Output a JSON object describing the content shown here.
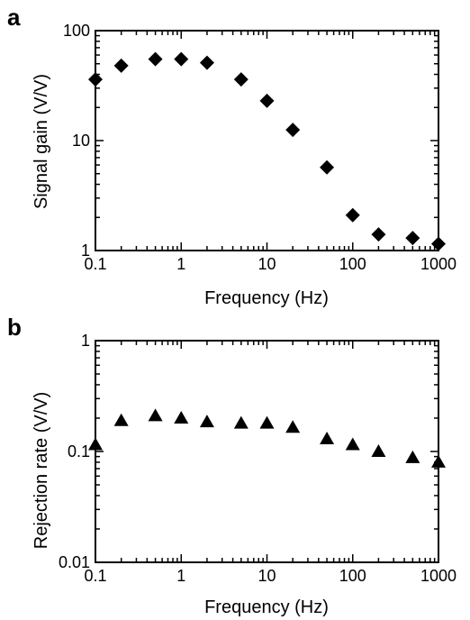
{
  "chart_data": [
    {
      "panel": "a",
      "type": "scatter",
      "marker": "diamond",
      "xlabel": "Frequency (Hz)",
      "ylabel": "Signal gain (V/V)",
      "xscale": "log",
      "yscale": "log",
      "xlim": [
        0.1,
        1000
      ],
      "ylim": [
        1,
        100
      ],
      "xticks": [
        0.1,
        1,
        10,
        100,
        1000
      ],
      "xtick_labels": [
        "0.1",
        "1",
        "10",
        "100",
        "1000"
      ],
      "yticks": [
        1,
        10,
        100
      ],
      "ytick_labels": [
        "1",
        "10",
        "100"
      ],
      "grid": false,
      "series": [
        {
          "x": [
            0.1,
            0.2,
            0.5,
            1,
            2,
            5,
            10,
            20,
            50,
            100,
            200,
            500,
            1000
          ],
          "y": [
            36,
            48,
            55,
            55,
            51,
            36,
            23,
            12.5,
            5.7,
            2.1,
            1.4,
            1.3,
            1.15
          ]
        }
      ]
    },
    {
      "panel": "b",
      "type": "scatter",
      "marker": "triangle",
      "xlabel": "Frequency (Hz)",
      "ylabel": "Rejection rate (V/V)",
      "xscale": "log",
      "yscale": "log",
      "xlim": [
        0.1,
        1000
      ],
      "ylim": [
        0.01,
        1
      ],
      "xticks": [
        0.1,
        1,
        10,
        100,
        1000
      ],
      "xtick_labels": [
        "0.1",
        "1",
        "10",
        "100",
        "1000"
      ],
      "yticks": [
        0.01,
        0.1,
        1
      ],
      "ytick_labels": [
        "0.01",
        "0.1",
        "1"
      ],
      "grid": false,
      "series": [
        {
          "x": [
            0.1,
            0.2,
            0.5,
            1,
            2,
            5,
            10,
            20,
            50,
            100,
            200,
            500,
            1000
          ],
          "y": [
            0.115,
            0.19,
            0.21,
            0.2,
            0.185,
            0.18,
            0.18,
            0.165,
            0.13,
            0.115,
            0.1,
            0.088,
            0.08
          ]
        }
      ]
    }
  ]
}
